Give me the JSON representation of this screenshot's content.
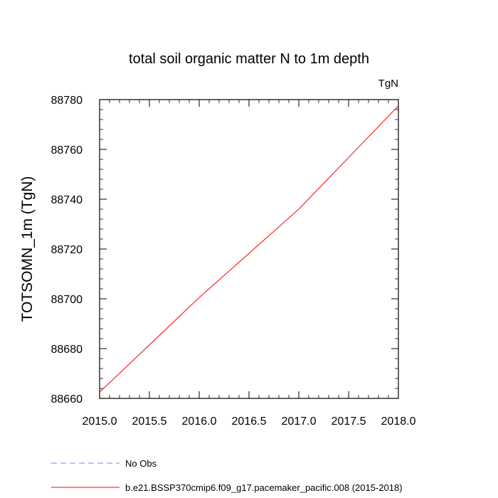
{
  "chart_data": {
    "type": "line",
    "title": "total soil organic matter N to 1m depth",
    "units_label": "TgN",
    "ylabel": "TOTSOMN_1m  (TgN)",
    "xlabel": "",
    "xlim": [
      2015.0,
      2018.0
    ],
    "ylim": [
      88660,
      88780
    ],
    "x_ticks": [
      "2015.0",
      "2015.5",
      "2016.0",
      "2016.5",
      "2017.0",
      "2017.5",
      "2018.0"
    ],
    "y_ticks": [
      "88660",
      "88680",
      "88700",
      "88720",
      "88740",
      "88760",
      "88780"
    ],
    "grid": false,
    "legend_position": "bottom",
    "series": [
      {
        "name": "b.e21.BSSP370cmip6.f09_g17.pacemaker_pacific.008 (2015-2018)",
        "color": "#ff0000",
        "style": "solid",
        "x": [
          2015.0,
          2016.0,
          2017.0,
          2018.0
        ],
        "y": [
          88662.5,
          88700.5,
          88736.0,
          88777.5
        ]
      }
    ],
    "legend": [
      {
        "label": "No Obs",
        "color": "#8080ff",
        "style": "dashed"
      },
      {
        "label": "b.e21.BSSP370cmip6.f09_g17.pacemaker_pacific.008 (2015-2018)",
        "color": "#ff0000",
        "style": "solid"
      }
    ]
  }
}
